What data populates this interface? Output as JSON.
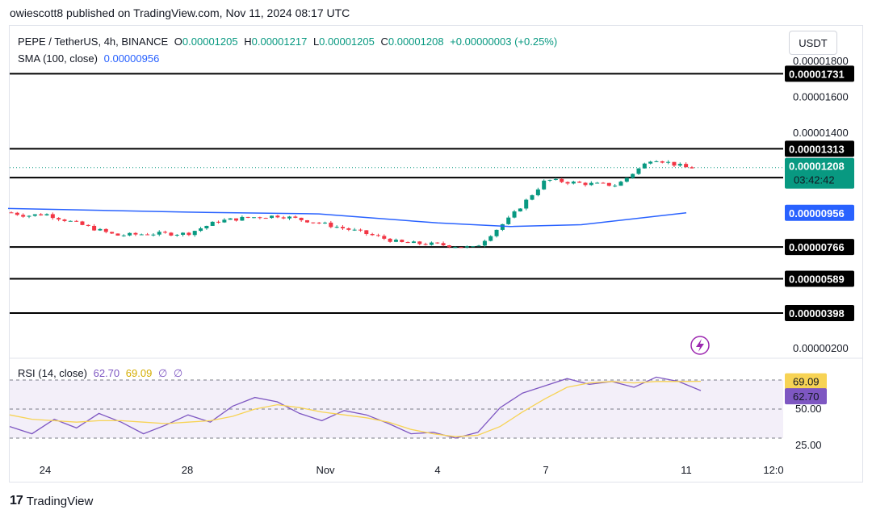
{
  "header": {
    "published": "owiescott8 published on TradingView.com, Nov 11, 2024 08:17 UTC"
  },
  "legend": {
    "symbol": "PEPE / TetherUS, 4h, BINANCE",
    "open_label": "O",
    "open": "0.00001205",
    "high_label": "H",
    "high": "0.00001217",
    "low_label": "L",
    "low": "0.00001205",
    "close_label": "C",
    "close": "0.00001208",
    "change": "+0.00000003 (+0.25%)",
    "sma_label": "SMA (100, close)",
    "sma_value": "0.00000956",
    "rsi_label": "RSI (14, close)",
    "rsi_value": "62.70",
    "rsi_ma_value": "69.09",
    "rsi_extra1": "∅",
    "rsi_extra2": "∅"
  },
  "currency_button": "USDT",
  "footer": {
    "brand": "TradingView"
  },
  "colors": {
    "up": "#089981",
    "down": "#f23645",
    "sma": "#2962ff",
    "rsi": "#7e57c2",
    "rsi_ma": "#f7d354",
    "rsi_band": "#f3eff9",
    "level": "#000000"
  },
  "chart_data": [
    {
      "type": "candlestick",
      "symbol": "PEPE / TetherUS",
      "interval": "4h",
      "x_ticks": [
        "24",
        "28",
        "Nov",
        "4",
        "7",
        "11",
        "12:0"
      ],
      "y_ticks": [
        "0.00001800",
        "0.00001600",
        "0.00001400",
        "0.00000200"
      ],
      "price_labels": {
        "current": "0.00001208",
        "countdown": "03:42:42",
        "sma": "0.00000956"
      },
      "horizontal_levels": [
        "0.00001731",
        "0.00001313",
        "0.00001152",
        "0.00000766",
        "0.00000589",
        "0.00000398"
      ],
      "close_path": [
        {
          "x": "Oct 22",
          "y": 9.6e-06
        },
        {
          "x": "Oct 23",
          "y": 9.4e-06
        },
        {
          "x": "Oct 24",
          "y": 9.5e-06
        },
        {
          "x": "Oct 25",
          "y": 8.9e-06
        },
        {
          "x": "Oct 26",
          "y": 8.3e-06
        },
        {
          "x": "Oct 27",
          "y": 8.4e-06
        },
        {
          "x": "Oct 28",
          "y": 8.4e-06
        },
        {
          "x": "Oct 29",
          "y": 9.1e-06
        },
        {
          "x": "Oct 30",
          "y": 9.3e-06
        },
        {
          "x": "Oct 31",
          "y": 9.4e-06
        },
        {
          "x": "Nov 1",
          "y": 9e-06
        },
        {
          "x": "Nov 2",
          "y": 8.5e-06
        },
        {
          "x": "Nov 3",
          "y": 7.9e-06
        },
        {
          "x": "Nov 4",
          "y": 7.8e-06
        },
        {
          "x": "Nov 5",
          "y": 7.6e-06
        },
        {
          "x": "Nov 6",
          "y": 9.3e-06
        },
        {
          "x": "Nov 7",
          "y": 1.14e-05
        },
        {
          "x": "Nov 8",
          "y": 1.12e-05
        },
        {
          "x": "Nov 9",
          "y": 1.11e-05
        },
        {
          "x": "Nov 10",
          "y": 1.26e-05
        },
        {
          "x": "Nov 11",
          "y": 1.208e-05
        }
      ],
      "sma_path": [
        {
          "x": "Oct 22",
          "y": 9.8e-06
        },
        {
          "x": "Oct 28",
          "y": 9.6e-06
        },
        {
          "x": "Nov 1",
          "y": 9.5e-06
        },
        {
          "x": "Nov 4",
          "y": 9e-06
        },
        {
          "x": "Nov 6",
          "y": 8.8e-06
        },
        {
          "x": "Nov 8",
          "y": 8.9e-06
        },
        {
          "x": "Nov 11",
          "y": 9.56e-06
        }
      ],
      "ylim": [
        1.9e-06,
        1.83e-05
      ]
    },
    {
      "type": "line",
      "title": "RSI (14, close)",
      "y_ticks": [
        "50.00",
        "25.00"
      ],
      "bands": [
        70,
        50,
        30
      ],
      "series": [
        {
          "name": "RSI",
          "values": [
            38,
            33,
            43,
            37,
            47,
            41,
            33,
            39,
            46,
            41,
            52,
            58,
            55,
            47,
            42,
            49,
            46,
            40,
            33,
            34,
            30,
            34,
            51,
            61,
            66,
            71,
            67,
            69,
            65,
            72,
            69,
            62.7
          ]
        },
        {
          "name": "RSI-based MA",
          "values": [
            46,
            43,
            42,
            41,
            42,
            42,
            41,
            40,
            41,
            42,
            45,
            50,
            53,
            51,
            48,
            46,
            44,
            41,
            36,
            33,
            31,
            32,
            38,
            48,
            57,
            65,
            68,
            69,
            68,
            69,
            69,
            69.09
          ]
        }
      ],
      "latest": {
        "rsi": "62.70",
        "ma": "69.09"
      }
    }
  ]
}
